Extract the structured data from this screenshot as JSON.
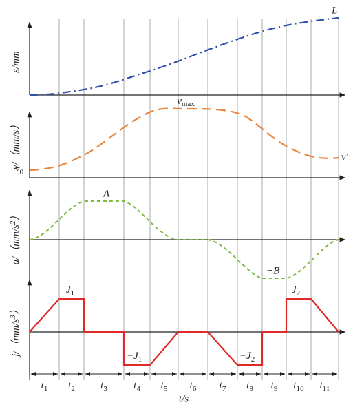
{
  "labels": {
    "s_axis": "s/mm",
    "L": "L",
    "vmax": {
      "base": "v",
      "sub": "max"
    },
    "v_axis": [
      "v/（mm/s）"
    ],
    "v0": {
      "base": "v",
      "sub": "0"
    },
    "v_prime": "v′",
    "A": "A",
    "a_axis": [
      "a/（mm/s",
      "2",
      "）"
    ],
    "neg_B": "−B",
    "J1": {
      "base": "J",
      "sub": "1"
    },
    "neg_J1": {
      "base": "−J",
      "sub": "1"
    },
    "neg_J2": {
      "base": "−J",
      "sub": "2"
    },
    "J2": {
      "base": "J",
      "sub": "2"
    },
    "j_axis": [
      "j/（mm/s",
      "3",
      "）"
    ],
    "t_axis": "t/s"
  },
  "intervals": [
    {
      "base": "t",
      "sub": "1"
    },
    {
      "base": "t",
      "sub": "2"
    },
    {
      "base": "t",
      "sub": "3"
    },
    {
      "base": "t",
      "sub": "4"
    },
    {
      "base": "t",
      "sub": "5"
    },
    {
      "base": "t",
      "sub": "6"
    },
    {
      "base": "t",
      "sub": "7"
    },
    {
      "base": "t",
      "sub": "8"
    },
    {
      "base": "t",
      "sub": "9"
    },
    {
      "base": "t",
      "sub": "10"
    },
    {
      "base": "t",
      "sub": "11"
    }
  ]
}
